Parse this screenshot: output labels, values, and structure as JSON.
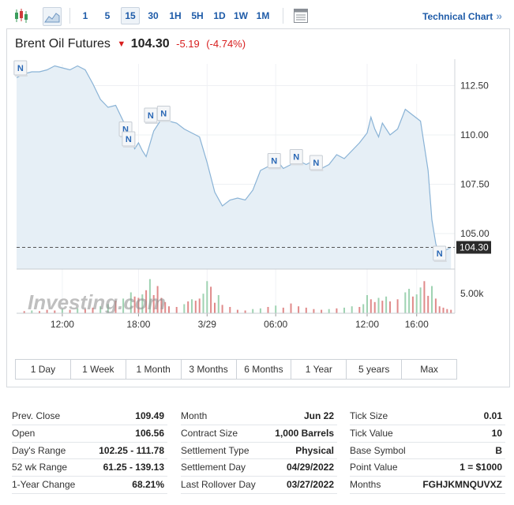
{
  "toolbar": {
    "chart_type_icons": [
      "candlestick-icon",
      "area-chart-icon"
    ],
    "intervals": [
      "1",
      "5",
      "15",
      "30",
      "1H",
      "5H",
      "1D",
      "1W",
      "1M"
    ],
    "active_interval": "15",
    "table_icon": "table-icon",
    "technical_link": "Technical Chart",
    "technical_chevron": "»"
  },
  "instrument": {
    "name": "Brent Oil Futures",
    "direction_icon": "down-arrow-icon",
    "price": "104.30",
    "change": "-5.19",
    "change_pct": "(-4.74%)",
    "down_color": "#d81e1e"
  },
  "chart_data": {
    "type": "area",
    "price_axis": {
      "ticks": [
        "112.50",
        "110.00",
        "107.50",
        "105.00"
      ],
      "ylim": [
        103.2,
        113.6
      ]
    },
    "volume_axis": {
      "ticks": [
        "5.00k"
      ]
    },
    "x_ticks": [
      "12:00",
      "18:00",
      "3/29",
      "06:00",
      "12:00",
      "16:00"
    ],
    "current_price_label": "104.30",
    "current_price": 104.3,
    "watermark": "Investing.com",
    "news_marker_label": "N",
    "news_markers": [
      {
        "t": 0.5,
        "y": 113.4
      },
      {
        "t": 14.3,
        "y": 110.3
      },
      {
        "t": 14.7,
        "y": 109.8
      },
      {
        "t": 17.6,
        "y": 111.0
      },
      {
        "t": 19.3,
        "y": 111.1
      },
      {
        "t": 33.8,
        "y": 108.7
      },
      {
        "t": 36.7,
        "y": 108.9
      },
      {
        "t": 39.3,
        "y": 108.6
      },
      {
        "t": 55.5,
        "y": 104.0
      }
    ],
    "series": [
      {
        "values": [
          [
            0,
            112.9
          ],
          [
            1,
            113.1
          ],
          [
            2,
            113.2
          ],
          [
            3,
            113.2
          ],
          [
            4,
            113.3
          ],
          [
            5,
            113.5
          ],
          [
            6,
            113.4
          ],
          [
            7,
            113.3
          ],
          [
            8,
            113.5
          ],
          [
            9,
            113.3
          ],
          [
            10,
            112.6
          ],
          [
            11,
            111.8
          ],
          [
            12,
            111.4
          ],
          [
            13,
            111.5
          ],
          [
            14,
            110.7
          ],
          [
            14.5,
            110.2
          ],
          [
            15,
            109.8
          ],
          [
            15.5,
            109.3
          ],
          [
            16,
            109.6
          ],
          [
            16.5,
            109.2
          ],
          [
            17,
            108.9
          ],
          [
            18,
            110.2
          ],
          [
            19,
            110.8
          ],
          [
            20,
            110.7
          ],
          [
            21,
            110.6
          ],
          [
            22,
            110.3
          ],
          [
            23,
            110.1
          ],
          [
            24,
            109.9
          ],
          [
            25,
            108.6
          ],
          [
            26,
            107.1
          ],
          [
            27,
            106.4
          ],
          [
            28,
            106.7
          ],
          [
            29,
            106.8
          ],
          [
            30,
            106.7
          ],
          [
            31,
            107.2
          ],
          [
            32,
            108.2
          ],
          [
            33,
            108.4
          ],
          [
            34,
            108.8
          ],
          [
            35,
            108.3
          ],
          [
            36,
            108.5
          ],
          [
            37,
            108.7
          ],
          [
            38,
            108.5
          ],
          [
            39,
            108.7
          ],
          [
            40,
            108.3
          ],
          [
            41,
            108.5
          ],
          [
            42,
            109.0
          ],
          [
            43,
            108.8
          ],
          [
            44,
            109.2
          ],
          [
            45,
            109.6
          ],
          [
            46,
            110.1
          ],
          [
            46.5,
            110.9
          ],
          [
            47,
            110.3
          ],
          [
            47.5,
            109.9
          ],
          [
            48,
            110.6
          ],
          [
            49,
            110.0
          ],
          [
            50,
            110.3
          ],
          [
            51,
            111.3
          ],
          [
            52,
            111.0
          ],
          [
            53,
            110.7
          ],
          [
            54,
            108.2
          ],
          [
            54.5,
            105.7
          ],
          [
            55,
            104.5
          ],
          [
            55.5,
            103.8
          ],
          [
            56,
            104.1
          ],
          [
            57,
            104.3
          ]
        ]
      }
    ],
    "volume": [
      [
        1,
        0.3
      ],
      [
        2,
        0.4
      ],
      [
        3,
        0.3
      ],
      [
        4,
        0.5
      ],
      [
        5,
        0.4
      ],
      [
        6,
        0.6
      ],
      [
        7,
        0.5
      ],
      [
        8,
        0.7
      ],
      [
        9,
        0.6
      ],
      [
        10,
        0.8
      ],
      [
        11,
        1.0
      ],
      [
        12,
        1.3
      ],
      [
        13,
        1.8
      ],
      [
        14,
        2.1
      ],
      [
        15,
        3.0
      ],
      [
        15.5,
        2.4
      ],
      [
        16,
        2.2
      ],
      [
        16.5,
        2.7
      ],
      [
        17,
        3.3
      ],
      [
        17.5,
        4.9
      ],
      [
        18,
        2.6
      ],
      [
        18.5,
        3.9
      ],
      [
        19,
        2.2
      ],
      [
        19.5,
        1.6
      ],
      [
        20,
        1.0
      ],
      [
        21,
        0.9
      ],
      [
        22,
        1.3
      ],
      [
        22.5,
        1.7
      ],
      [
        23,
        2.0
      ],
      [
        23.5,
        1.8
      ],
      [
        24,
        2.1
      ],
      [
        24.5,
        2.8
      ],
      [
        25,
        4.6
      ],
      [
        25.5,
        3.8
      ],
      [
        26,
        1.5
      ],
      [
        26.5,
        2.6
      ],
      [
        27,
        1.2
      ],
      [
        28,
        0.9
      ],
      [
        29,
        0.5
      ],
      [
        30,
        0.4
      ],
      [
        31,
        0.6
      ],
      [
        32,
        0.7
      ],
      [
        33,
        0.9
      ],
      [
        34,
        1.1
      ],
      [
        35,
        0.8
      ],
      [
        36,
        1.4
      ],
      [
        37,
        1.0
      ],
      [
        38,
        0.8
      ],
      [
        39,
        0.6
      ],
      [
        40,
        0.5
      ],
      [
        41,
        0.6
      ],
      [
        42,
        0.7
      ],
      [
        43,
        0.8
      ],
      [
        44,
        1.0
      ],
      [
        45,
        0.9
      ],
      [
        45.5,
        1.3
      ],
      [
        46,
        2.6
      ],
      [
        46.5,
        2.0
      ],
      [
        47,
        1.6
      ],
      [
        47.5,
        2.2
      ],
      [
        48,
        1.8
      ],
      [
        48.5,
        2.4
      ],
      [
        49,
        1.7
      ],
      [
        50,
        2.0
      ],
      [
        51,
        3.0
      ],
      [
        51.5,
        3.5
      ],
      [
        52,
        2.4
      ],
      [
        52.5,
        2.7
      ],
      [
        53,
        3.7
      ],
      [
        53.5,
        4.6
      ],
      [
        54,
        2.5
      ],
      [
        54.5,
        3.9
      ],
      [
        55,
        2.1
      ],
      [
        55.5,
        1.0
      ],
      [
        56,
        0.8
      ],
      [
        56.5,
        0.6
      ],
      [
        57,
        0.5
      ]
    ],
    "volume_max": 5.2,
    "grid": true,
    "fill_color": "#e6eff6",
    "line_color": "#8ab3d6",
    "volume_up_color": "#9fd3b2",
    "volume_down_color": "#e08a8a"
  },
  "ranges": [
    "1 Day",
    "1 Week",
    "1 Month",
    "3 Months",
    "6 Months",
    "1 Year",
    "5 years",
    "Max"
  ],
  "stats": {
    "col1": [
      {
        "label": "Prev. Close",
        "value": "109.49"
      },
      {
        "label": "Open",
        "value": "106.56"
      },
      {
        "label": "Day's Range",
        "value": "102.25 - 111.78"
      },
      {
        "label": "52 wk Range",
        "value": "61.25 - 139.13"
      },
      {
        "label": "1-Year Change",
        "value": "68.21%"
      }
    ],
    "col2": [
      {
        "label": "Month",
        "value": "Jun 22"
      },
      {
        "label": "Contract Size",
        "value": "1,000 Barrels"
      },
      {
        "label": "Settlement Type",
        "value": "Physical"
      },
      {
        "label": "Settlement Day",
        "value": "04/29/2022"
      },
      {
        "label": "Last Rollover Day",
        "value": "03/27/2022"
      }
    ],
    "col3": [
      {
        "label": "Tick Size",
        "value": "0.01"
      },
      {
        "label": "Tick Value",
        "value": "10"
      },
      {
        "label": "Base Symbol",
        "value": "B"
      },
      {
        "label": "Point Value",
        "value": "1 = $1000"
      },
      {
        "label": "Months",
        "value": "FGHJKMNQUVXZ"
      }
    ]
  }
}
